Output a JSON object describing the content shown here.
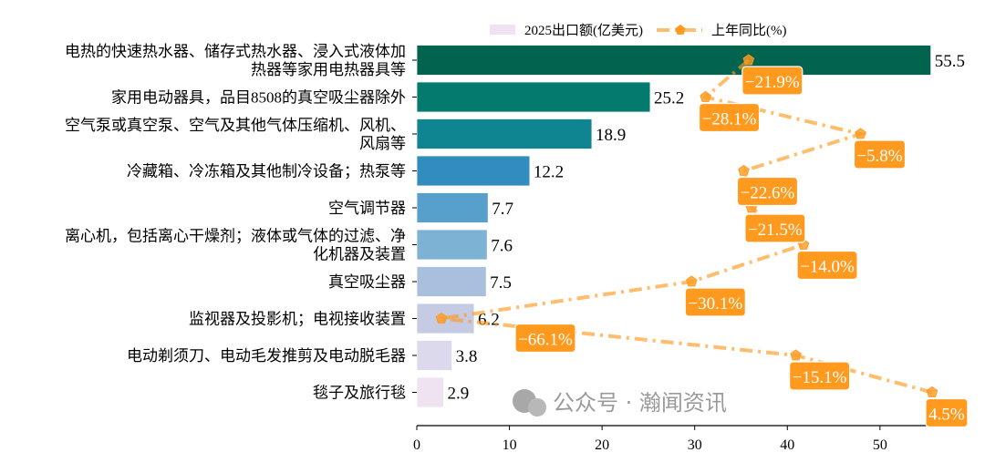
{
  "chart_data": {
    "type": "bar",
    "orientation": "horizontal",
    "categories": [
      [
        "电热的快速热水器、储存式热水器、浸入式液体加",
        "热器等家用电热器具等"
      ],
      [
        "家用电动器具，品目8508的真空吸尘器除外"
      ],
      [
        "空气泵或真空泵、空气及其他气体压缩机、风机、",
        "风扇等"
      ],
      [
        "冷藏箱、冷冻箱及其他制冷设备；热泵等"
      ],
      [
        "空气调节器"
      ],
      [
        "离心机，包括离心干燥剂；液体或气体的过滤、净",
        "化机器及装置"
      ],
      [
        "真空吸尘器"
      ],
      [
        "监视器及投影机；电视接收装置"
      ],
      [
        "电动剃须刀、电动毛发推剪及电动脱毛器"
      ],
      [
        "毯子及旅行毯"
      ]
    ],
    "series": [
      {
        "name": "2025出口额(亿美元)",
        "type": "bar",
        "values": [
          55.5,
          25.2,
          18.9,
          12.2,
          7.7,
          7.6,
          7.5,
          6.2,
          3.8,
          2.9
        ],
        "labels": [
          "55.5",
          "25.2",
          "18.9",
          "12.2",
          "7.7",
          "7.6",
          "7.5",
          "6.2",
          "3.8",
          "2.9"
        ],
        "colors": [
          "#02634f",
          "#037a6e",
          "#0e8590",
          "#318dbd",
          "#56a0cb",
          "#7db2d5",
          "#a8bfdd",
          "#c6cbe4",
          "#dcd9ec",
          "#efe3f2"
        ]
      },
      {
        "name": "上年同比(%)",
        "type": "line",
        "values": [
          -21.9,
          -28.1,
          -5.8,
          -22.6,
          -21.5,
          -14.0,
          -30.1,
          -66.1,
          -15.1,
          4.5
        ],
        "labels": [
          "−21.9%",
          "−28.1%",
          "−5.8%",
          "−22.6%",
          "−21.5%",
          "−14.0%",
          "−30.1%",
          "−66.1%",
          "−15.1%",
          "4.5%"
        ],
        "color": "#ff9a1f",
        "line_style": "dash-dot",
        "marker": "pentagon"
      }
    ],
    "xticks": [
      "0",
      "10",
      "20",
      "30",
      "40",
      "50"
    ],
    "xlim": [
      0,
      57.4
    ],
    "legend_placement": "top-center",
    "grid": false
  },
  "watermark": {
    "text": "公众号 · 瀚闻资讯",
    "icon": "wechat-icon"
  }
}
